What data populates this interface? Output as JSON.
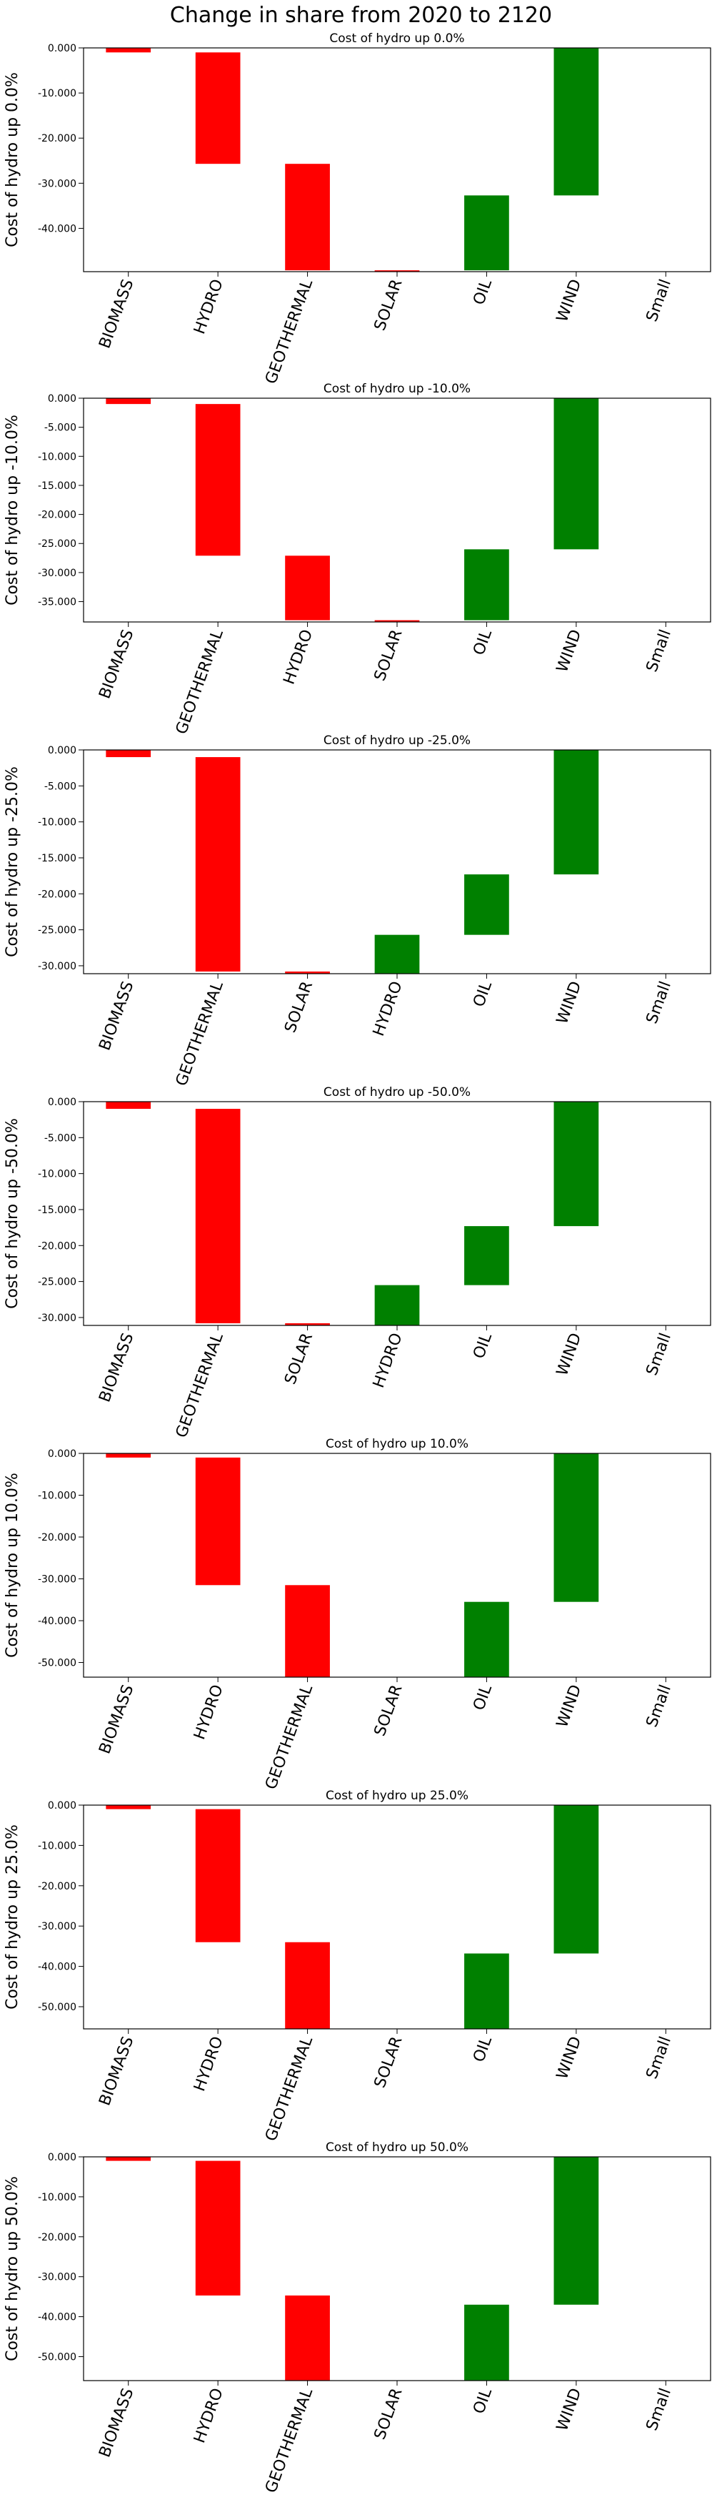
{
  "figure": {
    "title": "Change in share from 2020 to 2120"
  },
  "colors": {
    "negative": "#ff0000",
    "positive": "#008000"
  },
  "chart_data": [
    {
      "type": "bar",
      "title": "Cost of hydro up 0.0%",
      "ylabel": "Cost of hydro up 0.0%",
      "categories": [
        "BIOMASS",
        "HYDRO",
        "GEOTHERMAL",
        "SOLAR",
        "OIL",
        "WIND",
        "Small"
      ],
      "bars": [
        [
          -1000,
          0
        ],
        [
          -25700,
          -1000
        ],
        [
          -49300,
          -25700
        ],
        [
          -49600,
          -49300
        ],
        [
          -49300,
          -32700
        ],
        [
          -32700,
          0
        ],
        [
          0,
          0
        ]
      ],
      "colors": [
        "red",
        "red",
        "red",
        "red",
        "green",
        "green",
        "green"
      ],
      "yticks": [
        0,
        -10000,
        -20000,
        -30000,
        -40000
      ],
      "ytick_labels": [
        "0.000",
        "-10.000",
        "-20.000",
        "-30.000",
        "-40.000"
      ],
      "ylim": [
        -49600,
        0
      ]
    },
    {
      "type": "bar",
      "title": "Cost of hydro up -10.0%",
      "ylabel": "Cost of hydro up -10.0%",
      "categories": [
        "BIOMASS",
        "GEOTHERMAL",
        "HYDRO",
        "SOLAR",
        "OIL",
        "WIND",
        "Small"
      ],
      "bars": [
        [
          -1000,
          0
        ],
        [
          -27100,
          -1000
        ],
        [
          -38200,
          -27100
        ],
        [
          -38500,
          -38200
        ],
        [
          -38200,
          -26000
        ],
        [
          -26000,
          0
        ],
        [
          0,
          0
        ]
      ],
      "colors": [
        "red",
        "red",
        "red",
        "red",
        "green",
        "green",
        "green"
      ],
      "yticks": [
        0,
        -5000,
        -10000,
        -15000,
        -20000,
        -25000,
        -30000,
        -35000
      ],
      "ytick_labels": [
        "0.000",
        "-5.000",
        "-10.000",
        "-15.000",
        "-20.000",
        "-25.000",
        "-30.000",
        "-35.000"
      ],
      "ylim": [
        -38500,
        0
      ]
    },
    {
      "type": "bar",
      "title": "Cost of hydro up -25.0%",
      "ylabel": "Cost of hydro up -25.0%",
      "categories": [
        "BIOMASS",
        "GEOTHERMAL",
        "SOLAR",
        "HYDRO",
        "OIL",
        "WIND",
        "Small"
      ],
      "bars": [
        [
          -1000,
          0
        ],
        [
          -30800,
          -1000
        ],
        [
          -31100,
          -30800
        ],
        [
          -31100,
          -25700
        ],
        [
          -25700,
          -17300
        ],
        [
          -17300,
          0
        ],
        [
          0,
          0
        ]
      ],
      "colors": [
        "red",
        "red",
        "red",
        "green",
        "green",
        "green",
        "green"
      ],
      "yticks": [
        0,
        -5000,
        -10000,
        -15000,
        -20000,
        -25000,
        -30000
      ],
      "ytick_labels": [
        "0.000",
        "-5.000",
        "-10.000",
        "-15.000",
        "-20.000",
        "-25.000",
        "-30.000"
      ],
      "ylim": [
        -31100,
        0
      ]
    },
    {
      "type": "bar",
      "title": "Cost of hydro up -50.0%",
      "ylabel": "Cost of hydro up -50.0%",
      "categories": [
        "BIOMASS",
        "GEOTHERMAL",
        "SOLAR",
        "HYDRO",
        "OIL",
        "WIND",
        "Small"
      ],
      "bars": [
        [
          -1000,
          0
        ],
        [
          -30800,
          -1000
        ],
        [
          -31100,
          -30800
        ],
        [
          -31100,
          -25500
        ],
        [
          -25500,
          -17300
        ],
        [
          -17300,
          0
        ],
        [
          0,
          0
        ]
      ],
      "colors": [
        "red",
        "red",
        "red",
        "green",
        "green",
        "green",
        "green"
      ],
      "yticks": [
        0,
        -5000,
        -10000,
        -15000,
        -20000,
        -25000,
        -30000
      ],
      "ytick_labels": [
        "0.000",
        "-5.000",
        "-10.000",
        "-15.000",
        "-20.000",
        "-25.000",
        "-30.000"
      ],
      "ylim": [
        -31100,
        0
      ]
    },
    {
      "type": "bar",
      "title": "Cost of hydro up 10.0%",
      "ylabel": "Cost of hydro up 10.0%",
      "categories": [
        "BIOMASS",
        "HYDRO",
        "GEOTHERMAL",
        "SOLAR",
        "OIL",
        "WIND",
        "Small"
      ],
      "bars": [
        [
          -1000,
          0
        ],
        [
          -31500,
          -1000
        ],
        [
          -53500,
          -31500
        ],
        [
          -53500,
          -53500
        ],
        [
          -53500,
          -35500
        ],
        [
          -35500,
          0
        ],
        [
          0,
          0
        ]
      ],
      "colors": [
        "red",
        "red",
        "red",
        "red",
        "green",
        "green",
        "green"
      ],
      "yticks": [
        0,
        -10000,
        -20000,
        -30000,
        -40000,
        -50000
      ],
      "ytick_labels": [
        "0.000",
        "-10.000",
        "-20.000",
        "-30.000",
        "-40.000",
        "-50.000"
      ],
      "ylim": [
        -53500,
        0
      ]
    },
    {
      "type": "bar",
      "title": "Cost of hydro up 25.0%",
      "ylabel": "Cost of hydro up 25.0%",
      "categories": [
        "BIOMASS",
        "HYDRO",
        "GEOTHERMAL",
        "SOLAR",
        "OIL",
        "WIND",
        "Small"
      ],
      "bars": [
        [
          -1000,
          0
        ],
        [
          -34000,
          -1000
        ],
        [
          -55500,
          -34000
        ],
        [
          -55500,
          -55500
        ],
        [
          -55500,
          -36800
        ],
        [
          -36800,
          0
        ],
        [
          0,
          0
        ]
      ],
      "colors": [
        "red",
        "red",
        "red",
        "red",
        "green",
        "green",
        "green"
      ],
      "yticks": [
        0,
        -10000,
        -20000,
        -30000,
        -40000,
        -50000
      ],
      "ytick_labels": [
        "0.000",
        "-10.000",
        "-20.000",
        "-30.000",
        "-40.000",
        "-50.000"
      ],
      "ylim": [
        -55500,
        0
      ]
    },
    {
      "type": "bar",
      "title": "Cost of hydro up 50.0%",
      "ylabel": "Cost of hydro up 50.0%",
      "categories": [
        "BIOMASS",
        "HYDRO",
        "GEOTHERMAL",
        "SOLAR",
        "OIL",
        "WIND",
        "Small"
      ],
      "bars": [
        [
          -1000,
          0
        ],
        [
          -34700,
          -1000
        ],
        [
          -56000,
          -34700
        ],
        [
          -56000,
          -56000
        ],
        [
          -56000,
          -37000
        ],
        [
          -37000,
          0
        ],
        [
          0,
          0
        ]
      ],
      "colors": [
        "red",
        "red",
        "red",
        "red",
        "green",
        "green",
        "green"
      ],
      "yticks": [
        0,
        -10000,
        -20000,
        -30000,
        -40000,
        -50000
      ],
      "ytick_labels": [
        "0.000",
        "-10.000",
        "-20.000",
        "-30.000",
        "-40.000",
        "-50.000"
      ],
      "ylim": [
        -56000,
        0
      ]
    }
  ]
}
